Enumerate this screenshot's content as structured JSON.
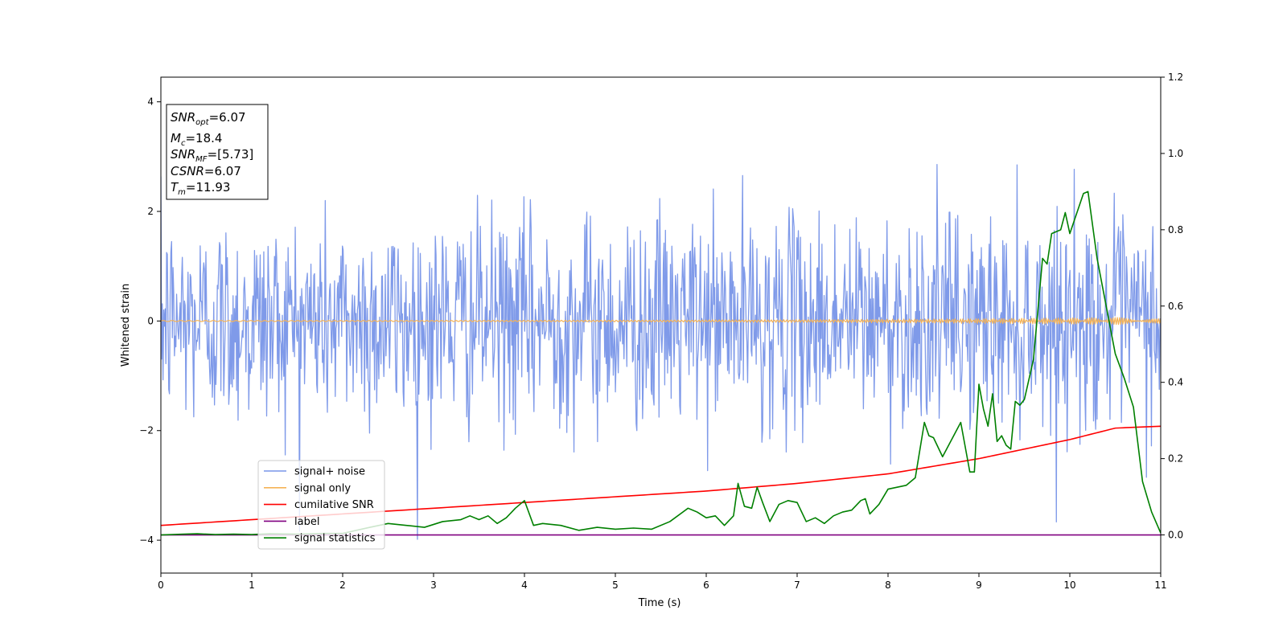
{
  "chart_data": {
    "type": "line",
    "xlabel": "Time (s)",
    "ylabel": "Whitened strain",
    "xlim": [
      0,
      11
    ],
    "ylim_left": [
      -4.6,
      4.45
    ],
    "ylim_right": [
      -0.1,
      1.2
    ],
    "x_ticks": [
      0,
      1,
      2,
      3,
      4,
      5,
      6,
      7,
      8,
      9,
      10,
      11
    ],
    "y_ticks_left": [
      -4,
      -2,
      0,
      2,
      4
    ],
    "y_ticks_right": [
      0.0,
      0.2,
      0.4,
      0.6,
      0.8,
      1.0,
      1.2
    ],
    "y_tick_labels_left": [
      "−4",
      "−2",
      "0",
      "2",
      "4"
    ],
    "y_tick_labels_right": [
      "0.0",
      "0.2",
      "0.4",
      "0.6",
      "0.8",
      "1.0",
      "1.2"
    ],
    "grid": false,
    "legend_position": "lower-left",
    "annotation": {
      "lines": [
        {
          "var": "SNR",
          "sub": "opt",
          "value": "=6.07"
        },
        {
          "var": "M",
          "sub": "c",
          "value": "=18.4"
        },
        {
          "var": "SNR",
          "sub": "MF",
          "value": "=[5.73]"
        },
        {
          "var": "CSNR",
          "sub": "",
          "value": "=6.07"
        },
        {
          "var": "T",
          "sub": "m",
          "value": "=11.93"
        }
      ]
    },
    "series": [
      {
        "name": "signal+ noise",
        "color": "#7895e8",
        "axis": "left",
        "kind": "noise",
        "std": 0.95,
        "clip": [
          -4.1,
          4.05
        ],
        "samples": 1400
      },
      {
        "name": "signal only",
        "color": "#f5b356",
        "axis": "left",
        "kind": "chirp",
        "amplitude_start": 0.01,
        "amplitude_end": 0.07
      },
      {
        "name": "cumilative SNR",
        "color": "#ff0000",
        "axis": "right",
        "x": [
          0,
          1,
          2,
          3,
          4,
          5,
          6,
          7,
          8,
          9,
          9.5,
          10,
          10.5,
          11
        ],
        "y": [
          0.025,
          0.04,
          0.055,
          0.07,
          0.085,
          0.1,
          0.115,
          0.135,
          0.16,
          0.2,
          0.225,
          0.25,
          0.28,
          0.285
        ]
      },
      {
        "name": "label",
        "color": "#800080",
        "axis": "right",
        "x": [
          0,
          11
        ],
        "y": [
          0.0,
          0.0
        ]
      },
      {
        "name": "signal statistics",
        "color": "#008000",
        "axis": "right",
        "x": [
          0,
          0.25,
          0.4,
          0.6,
          0.8,
          1.0,
          1.2,
          1.5,
          1.8,
          2.0,
          2.3,
          2.5,
          2.7,
          2.9,
          3.1,
          3.3,
          3.4,
          3.5,
          3.6,
          3.7,
          3.8,
          3.9,
          4.0,
          4.1,
          4.2,
          4.4,
          4.6,
          4.8,
          5.0,
          5.2,
          5.4,
          5.6,
          5.8,
          5.9,
          6.0,
          6.1,
          6.2,
          6.3,
          6.35,
          6.42,
          6.5,
          6.56,
          6.62,
          6.7,
          6.8,
          6.9,
          7.0,
          7.1,
          7.2,
          7.3,
          7.4,
          7.5,
          7.6,
          7.7,
          7.75,
          7.8,
          7.9,
          8.0,
          8.1,
          8.2,
          8.3,
          8.4,
          8.45,
          8.5,
          8.6,
          8.7,
          8.8,
          8.9,
          8.95,
          9.0,
          9.05,
          9.1,
          9.15,
          9.2,
          9.25,
          9.3,
          9.35,
          9.4,
          9.45,
          9.5,
          9.6,
          9.7,
          9.75,
          9.8,
          9.9,
          9.95,
          10.0,
          10.1,
          10.15,
          10.2,
          10.3,
          10.4,
          10.5,
          10.6,
          10.7,
          10.8,
          10.9,
          11.0
        ],
        "y": [
          0.0,
          0.002,
          0.003,
          0.001,
          0.002,
          0.001,
          0.003,
          0.002,
          0.004,
          0.004,
          0.02,
          0.03,
          0.025,
          0.02,
          0.035,
          0.04,
          0.05,
          0.04,
          0.05,
          0.03,
          0.045,
          0.07,
          0.09,
          0.025,
          0.03,
          0.025,
          0.012,
          0.02,
          0.015,
          0.018,
          0.015,
          0.035,
          0.07,
          0.06,
          0.045,
          0.05,
          0.025,
          0.05,
          0.135,
          0.075,
          0.07,
          0.125,
          0.085,
          0.035,
          0.08,
          0.09,
          0.085,
          0.035,
          0.045,
          0.03,
          0.05,
          0.06,
          0.065,
          0.09,
          0.095,
          0.055,
          0.08,
          0.12,
          0.125,
          0.13,
          0.15,
          0.295,
          0.26,
          0.255,
          0.205,
          0.25,
          0.295,
          0.165,
          0.165,
          0.395,
          0.33,
          0.285,
          0.37,
          0.245,
          0.26,
          0.235,
          0.225,
          0.35,
          0.34,
          0.355,
          0.46,
          0.725,
          0.71,
          0.79,
          0.8,
          0.845,
          0.79,
          0.86,
          0.895,
          0.9,
          0.725,
          0.6,
          0.475,
          0.41,
          0.335,
          0.14,
          0.06,
          0.005
        ]
      }
    ]
  }
}
